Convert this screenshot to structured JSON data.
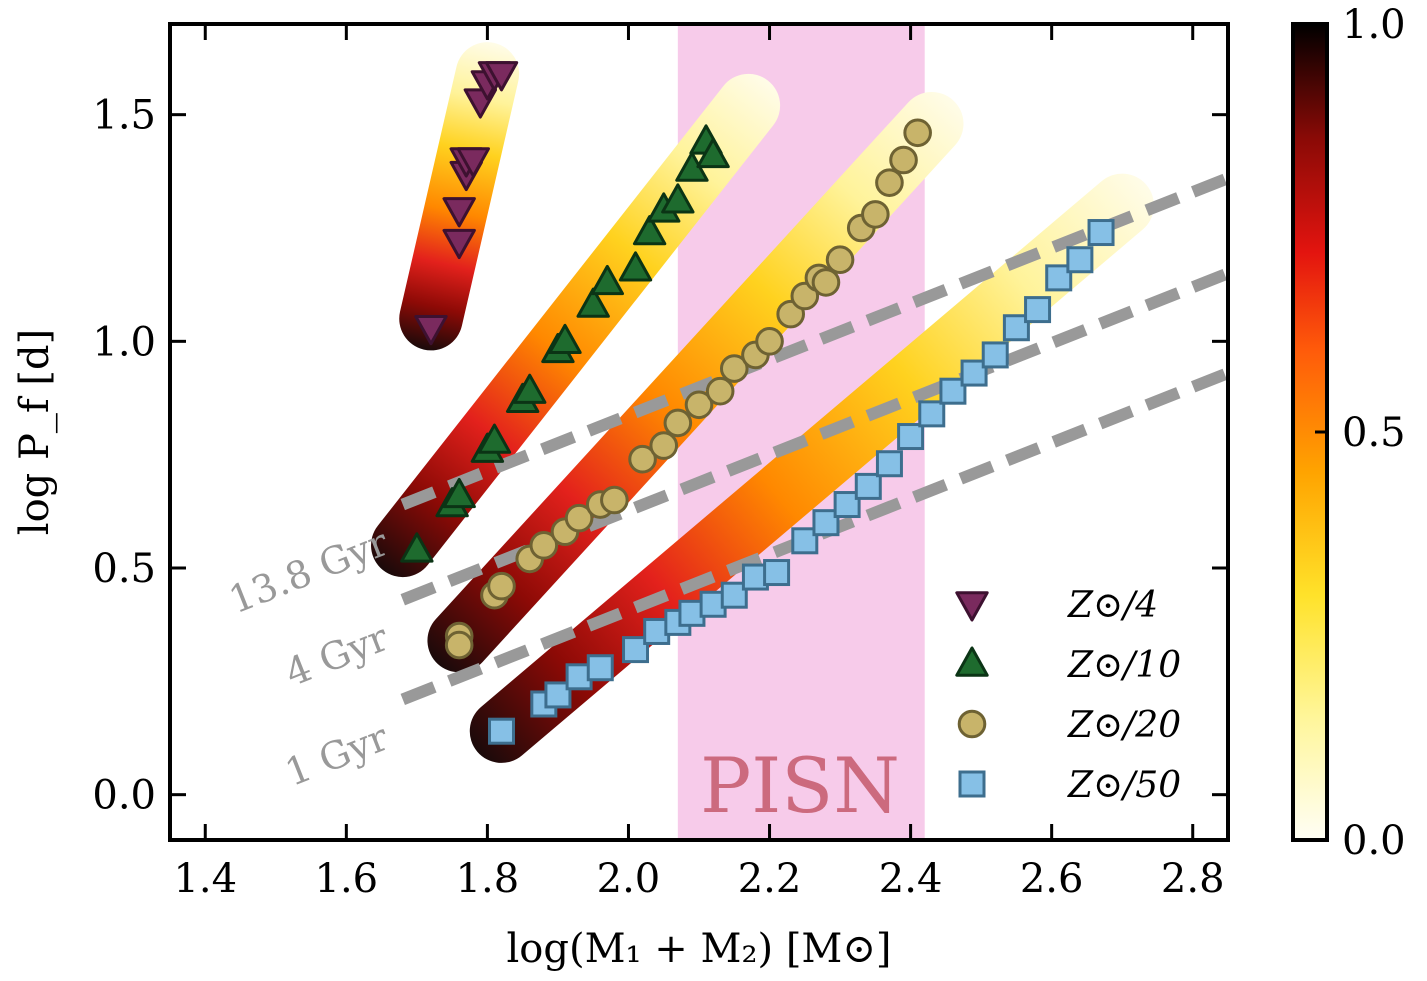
{
  "chart_data": {
    "type": "scatter",
    "xlabel": "log(M₁ + M₂) [M⊙]",
    "ylabel": "log P_f [d]",
    "xlim": [
      1.35,
      2.85
    ],
    "ylim": [
      -0.1,
      1.7
    ],
    "xticks": [
      1.4,
      1.6,
      1.8,
      2.0,
      2.2,
      2.4,
      2.6,
      2.8
    ],
    "yticks": [
      0.0,
      0.5,
      1.0,
      1.5
    ],
    "xtick_labels": [
      "1.4",
      "1.6",
      "1.8",
      "2.0",
      "2.2",
      "2.4",
      "2.6",
      "2.8"
    ],
    "ytick_labels": [
      "0.0",
      "0.5",
      "1.0",
      "1.5"
    ],
    "grid": false,
    "legend_position": "bottom-right",
    "pisn_region": {
      "label": "PISN",
      "x_range": [
        2.07,
        2.42
      ],
      "color": "#f7cbea"
    },
    "colorbar": {
      "range": [
        0.0,
        1.0
      ],
      "tick_labels": [
        "0.0",
        "0.5",
        "1.0"
      ]
    },
    "age_lines": [
      {
        "label": "13.8 Gyr",
        "start": [
          1.68,
          0.64
        ],
        "end": [
          2.85,
          1.36
        ]
      },
      {
        "label": "4 Gyr",
        "start": [
          1.68,
          0.43
        ],
        "end": [
          2.85,
          1.15
        ]
      },
      {
        "label": "1 Gyr",
        "start": [
          1.68,
          0.21
        ],
        "end": [
          2.85,
          0.93
        ]
      }
    ],
    "series": [
      {
        "name": "Z⊙/4",
        "marker": "triangle-down",
        "color": "#7a2a5e",
        "edge": "#3d1130",
        "band": {
          "start": [
            1.72,
            1.05
          ],
          "end": [
            1.8,
            1.59
          ],
          "width": 0.14
        },
        "points": [
          [
            1.72,
            1.03
          ],
          [
            1.76,
            1.22
          ],
          [
            1.76,
            1.29
          ],
          [
            1.77,
            1.37
          ],
          [
            1.77,
            1.4
          ],
          [
            1.78,
            1.4
          ],
          [
            1.79,
            1.53
          ],
          [
            1.8,
            1.57
          ],
          [
            1.81,
            1.59
          ],
          [
            1.82,
            1.59
          ]
        ]
      },
      {
        "name": "Z⊙/10",
        "marker": "triangle-up",
        "color": "#1e6b2e",
        "edge": "#0b3415",
        "band": {
          "start": [
            1.68,
            0.55
          ],
          "end": [
            2.17,
            1.52
          ],
          "width": 0.14
        },
        "points": [
          [
            1.7,
            0.54
          ],
          [
            1.75,
            0.64
          ],
          [
            1.76,
            0.66
          ],
          [
            1.8,
            0.76
          ],
          [
            1.81,
            0.78
          ],
          [
            1.85,
            0.87
          ],
          [
            1.86,
            0.89
          ],
          [
            1.9,
            0.98
          ],
          [
            1.91,
            1.0
          ],
          [
            1.95,
            1.08
          ],
          [
            1.97,
            1.13
          ],
          [
            2.01,
            1.16
          ],
          [
            2.03,
            1.24
          ],
          [
            2.05,
            1.29
          ],
          [
            2.07,
            1.31
          ],
          [
            2.09,
            1.38
          ],
          [
            2.11,
            1.44
          ],
          [
            2.12,
            1.41
          ]
        ]
      },
      {
        "name": "Z⊙/20",
        "marker": "circle",
        "color": "#c8b46a",
        "edge": "#6e6233",
        "band": {
          "start": [
            1.76,
            0.34
          ],
          "end": [
            2.43,
            1.48
          ],
          "width": 0.14
        },
        "points": [
          [
            1.76,
            0.35
          ],
          [
            1.76,
            0.33
          ],
          [
            1.81,
            0.44
          ],
          [
            1.82,
            0.46
          ],
          [
            1.86,
            0.52
          ],
          [
            1.88,
            0.55
          ],
          [
            1.91,
            0.58
          ],
          [
            1.93,
            0.61
          ],
          [
            1.96,
            0.64
          ],
          [
            1.98,
            0.65
          ],
          [
            2.02,
            0.74
          ],
          [
            2.05,
            0.77
          ],
          [
            2.07,
            0.82
          ],
          [
            2.1,
            0.86
          ],
          [
            2.13,
            0.89
          ],
          [
            2.15,
            0.94
          ],
          [
            2.18,
            0.97
          ],
          [
            2.2,
            1.0
          ],
          [
            2.23,
            1.06
          ],
          [
            2.25,
            1.1
          ],
          [
            2.27,
            1.14
          ],
          [
            2.28,
            1.13
          ],
          [
            2.3,
            1.18
          ],
          [
            2.33,
            1.25
          ],
          [
            2.35,
            1.28
          ],
          [
            2.37,
            1.35
          ],
          [
            2.39,
            1.4
          ],
          [
            2.41,
            1.46
          ]
        ]
      },
      {
        "name": "Z⊙/50",
        "marker": "square",
        "color": "#86c0e6",
        "edge": "#3d6e8e",
        "band": {
          "start": [
            1.82,
            0.14
          ],
          "end": [
            2.7,
            1.3
          ],
          "width": 0.14
        },
        "points": [
          [
            1.82,
            0.14
          ],
          [
            1.88,
            0.2
          ],
          [
            1.9,
            0.22
          ],
          [
            1.93,
            0.26
          ],
          [
            1.96,
            0.28
          ],
          [
            2.01,
            0.32
          ],
          [
            2.04,
            0.36
          ],
          [
            2.07,
            0.38
          ],
          [
            2.09,
            0.4
          ],
          [
            2.12,
            0.42
          ],
          [
            2.15,
            0.44
          ],
          [
            2.18,
            0.48
          ],
          [
            2.21,
            0.49
          ],
          [
            2.25,
            0.56
          ],
          [
            2.28,
            0.6
          ],
          [
            2.31,
            0.64
          ],
          [
            2.34,
            0.68
          ],
          [
            2.37,
            0.73
          ],
          [
            2.4,
            0.79
          ],
          [
            2.43,
            0.84
          ],
          [
            2.46,
            0.89
          ],
          [
            2.49,
            0.93
          ],
          [
            2.52,
            0.97
          ],
          [
            2.55,
            1.03
          ],
          [
            2.58,
            1.07
          ],
          [
            2.61,
            1.14
          ],
          [
            2.64,
            1.18
          ],
          [
            2.67,
            1.24
          ]
        ]
      }
    ]
  }
}
